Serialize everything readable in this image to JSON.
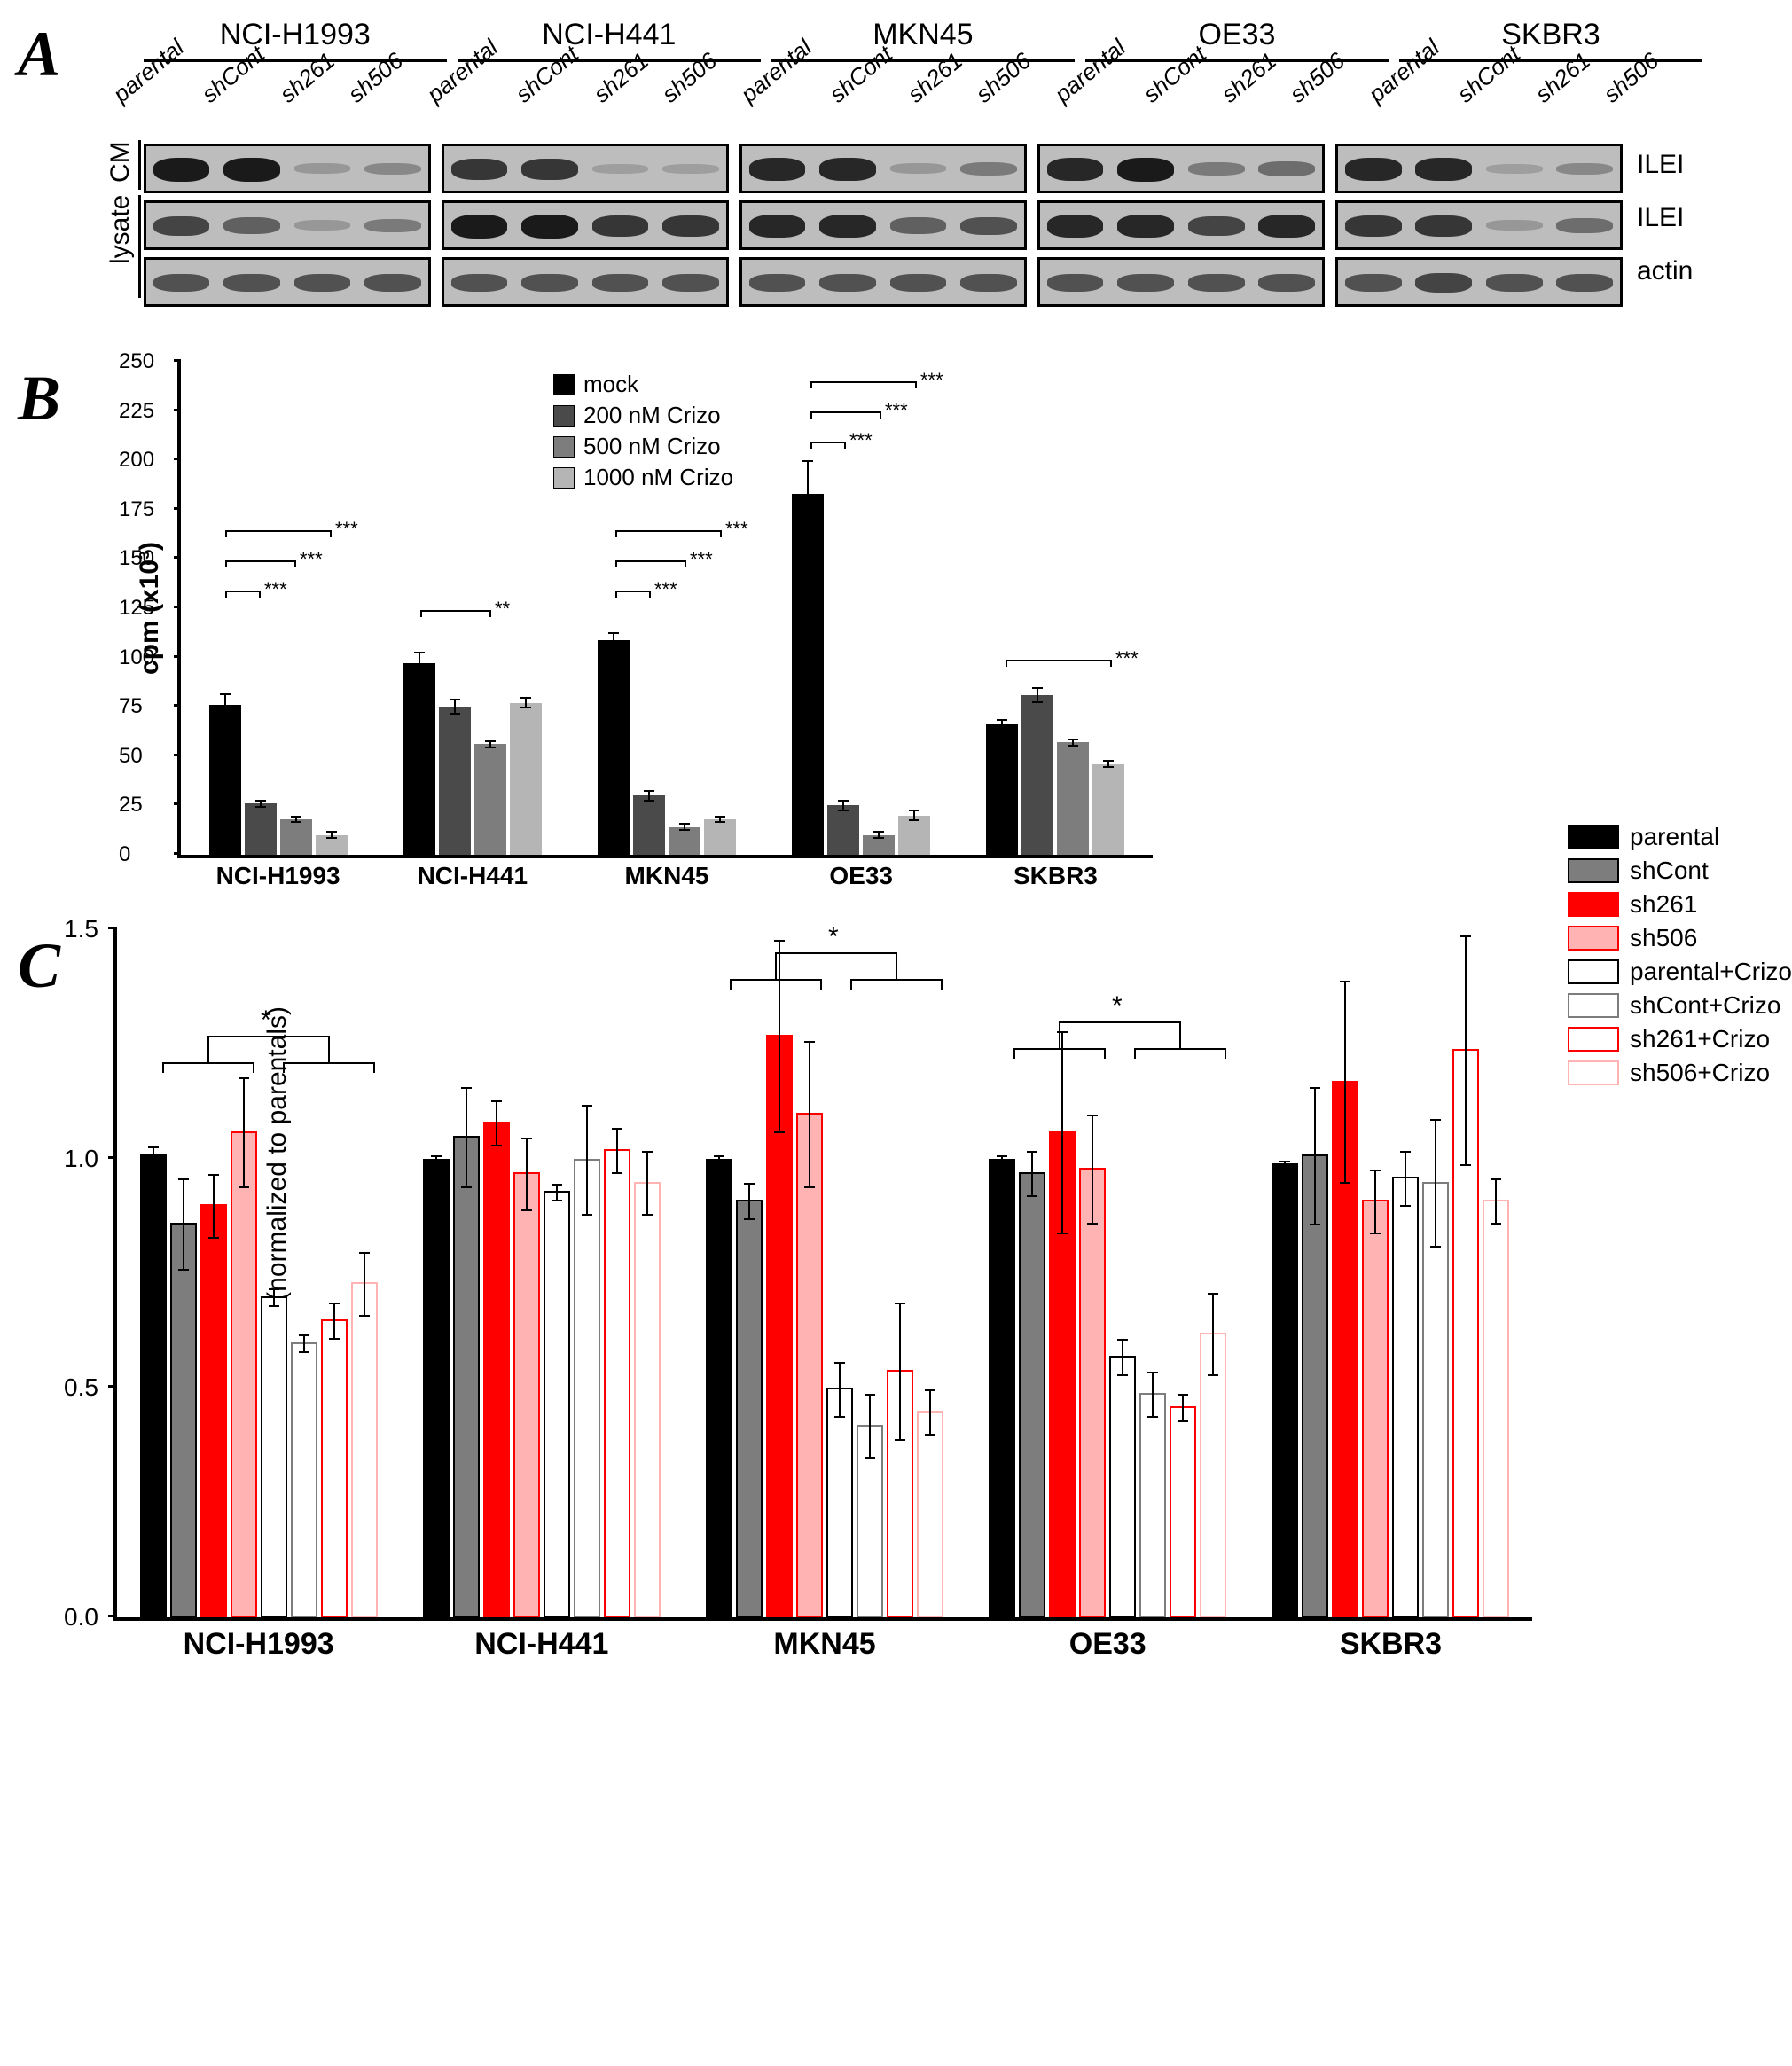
{
  "panelA": {
    "label": "A",
    "cell_lines": [
      "NCI-H1993",
      "NCI-H441",
      "MKN45",
      "OE33",
      "SKBR3"
    ],
    "lane_labels": [
      "parental",
      "shCont",
      "sh261",
      "sh506"
    ],
    "rows": [
      {
        "side_group": "CM",
        "target": "ILEI",
        "intensities": [
          [
            1.0,
            1.0,
            0.1,
            0.2
          ],
          [
            0.8,
            0.8,
            0.05,
            0.05
          ],
          [
            0.9,
            0.9,
            0.1,
            0.3
          ],
          [
            0.9,
            1.0,
            0.3,
            0.4
          ],
          [
            0.9,
            0.9,
            0.05,
            0.2
          ]
        ]
      },
      {
        "side_group": "lysate",
        "target": "ILEI",
        "intensities": [
          [
            0.7,
            0.5,
            0.1,
            0.3
          ],
          [
            1.0,
            1.0,
            0.8,
            0.8
          ],
          [
            0.9,
            0.9,
            0.5,
            0.6
          ],
          [
            0.9,
            0.9,
            0.7,
            0.9
          ],
          [
            0.8,
            0.8,
            0.1,
            0.4
          ]
        ]
      },
      {
        "side_group": "lysate",
        "target": "actin",
        "intensities": [
          [
            0.6,
            0.6,
            0.6,
            0.6
          ],
          [
            0.6,
            0.6,
            0.6,
            0.6
          ],
          [
            0.6,
            0.6,
            0.6,
            0.6
          ],
          [
            0.6,
            0.6,
            0.6,
            0.6
          ],
          [
            0.6,
            0.7,
            0.6,
            0.6
          ]
        ]
      }
    ],
    "side_labels": [
      {
        "text": "CM",
        "rows": 1
      },
      {
        "text": "lysate",
        "rows": 2
      }
    ]
  },
  "panelB": {
    "label": "B",
    "type": "bar",
    "ylabel": "cpm (x10³)",
    "ylim": [
      0,
      250
    ],
    "ytick_step": 25,
    "categories": [
      "NCI-H1993",
      "NCI-H441",
      "MKN45",
      "OE33",
      "SKBR3"
    ],
    "series": [
      {
        "name": "mock",
        "color": "#000000"
      },
      {
        "name": "200 nM Crizo",
        "color": "#4a4a4a"
      },
      {
        "name": "500 nM Crizo",
        "color": "#7d7d7d"
      },
      {
        "name": "1000 nM Crizo",
        "color": "#b5b5b5"
      }
    ],
    "values": [
      [
        76,
        26,
        18,
        10
      ],
      [
        97,
        75,
        56,
        77
      ],
      [
        109,
        30,
        14,
        18
      ],
      [
        183,
        25,
        10,
        20
      ],
      [
        66,
        81,
        57,
        46
      ]
    ],
    "errors": [
      [
        6,
        2,
        2,
        2
      ],
      [
        6,
        4,
        2,
        3
      ],
      [
        4,
        3,
        2,
        2
      ],
      [
        17,
        3,
        2,
        3
      ],
      [
        3,
        4,
        2,
        2
      ]
    ],
    "significance": [
      {
        "group": 0,
        "pairs": [
          [
            0,
            1,
            "***",
            135
          ],
          [
            0,
            2,
            "***",
            150
          ],
          [
            0,
            3,
            "***",
            165
          ]
        ]
      },
      {
        "group": 1,
        "pairs": [
          [
            0,
            2,
            "**",
            125
          ]
        ]
      },
      {
        "group": 2,
        "pairs": [
          [
            0,
            1,
            "***",
            135
          ],
          [
            0,
            2,
            "***",
            150
          ],
          [
            0,
            3,
            "***",
            165
          ]
        ]
      },
      {
        "group": 3,
        "pairs": [
          [
            0,
            1,
            "***",
            210
          ],
          [
            0,
            2,
            "***",
            225
          ],
          [
            0,
            3,
            "***",
            240
          ]
        ]
      },
      {
        "group": 4,
        "pairs": [
          [
            0,
            3,
            "***",
            100
          ]
        ]
      }
    ],
    "label_fontsize": 28
  },
  "panelC": {
    "label": "C",
    "type": "bar",
    "ylabel": "relative absorbance (normalized to parentals)",
    "ylim": [
      0.0,
      1.5
    ],
    "ytick_step": 0.5,
    "categories": [
      "NCI-H1993",
      "NCI-H441",
      "MKN45",
      "OE33",
      "SKBR3"
    ],
    "series": [
      {
        "name": "parental",
        "fill": "#000000",
        "border": "#000000",
        "hatched": false
      },
      {
        "name": "shCont",
        "fill": "#7d7d7d",
        "border": "#000000",
        "hatched": false
      },
      {
        "name": "sh261",
        "fill": "#ff0000",
        "border": "#ff0000",
        "hatched": false
      },
      {
        "name": "sh506",
        "fill": "#ffb3b3",
        "border": "#ff0000",
        "hatched": false
      },
      {
        "name": "parental+Crizo",
        "fill": "#ffffff",
        "border": "#000000",
        "hatched": true,
        "hatch_color": "#000000"
      },
      {
        "name": "shCont+Crizo",
        "fill": "#ffffff",
        "border": "#7d7d7d",
        "hatched": true,
        "hatch_color": "#7d7d7d"
      },
      {
        "name": "sh261+Crizo",
        "fill": "#ffffff",
        "border": "#ff0000",
        "hatched": true,
        "hatch_color": "#ff0000"
      },
      {
        "name": "sh506+Crizo",
        "fill": "#ffffff",
        "border": "#ffb3b3",
        "hatched": true,
        "hatch_color": "#ffb3b3"
      }
    ],
    "values": [
      [
        1.01,
        0.86,
        0.9,
        1.06,
        0.7,
        0.6,
        0.65,
        0.73
      ],
      [
        1.0,
        1.05,
        1.08,
        0.97,
        0.93,
        1.0,
        1.02,
        0.95
      ],
      [
        1.0,
        0.91,
        1.27,
        1.1,
        0.5,
        0.42,
        0.54,
        0.45
      ],
      [
        1.0,
        0.97,
        1.06,
        0.98,
        0.57,
        0.49,
        0.46,
        0.62
      ],
      [
        0.99,
        1.01,
        1.17,
        0.91,
        0.96,
        0.95,
        1.24,
        0.91
      ]
    ],
    "errors": [
      [
        0.02,
        0.1,
        0.07,
        0.12,
        0.02,
        0.02,
        0.04,
        0.07
      ],
      [
        0.01,
        0.11,
        0.05,
        0.08,
        0.02,
        0.12,
        0.05,
        0.07
      ],
      [
        0.01,
        0.04,
        0.21,
        0.16,
        0.06,
        0.07,
        0.15,
        0.05
      ],
      [
        0.01,
        0.05,
        0.22,
        0.12,
        0.04,
        0.05,
        0.03,
        0.09
      ],
      [
        0.01,
        0.15,
        0.22,
        0.07,
        0.06,
        0.14,
        0.25,
        0.05
      ]
    ],
    "significance": [
      {
        "group": 0,
        "label": "*",
        "y": 1.27
      },
      {
        "group": 2,
        "label": "*",
        "y": 1.45
      },
      {
        "group": 3,
        "label": "*",
        "y": 1.3
      }
    ],
    "label_fontsize": 28
  },
  "colors": {
    "background": "#ffffff",
    "axis": "#000000"
  }
}
